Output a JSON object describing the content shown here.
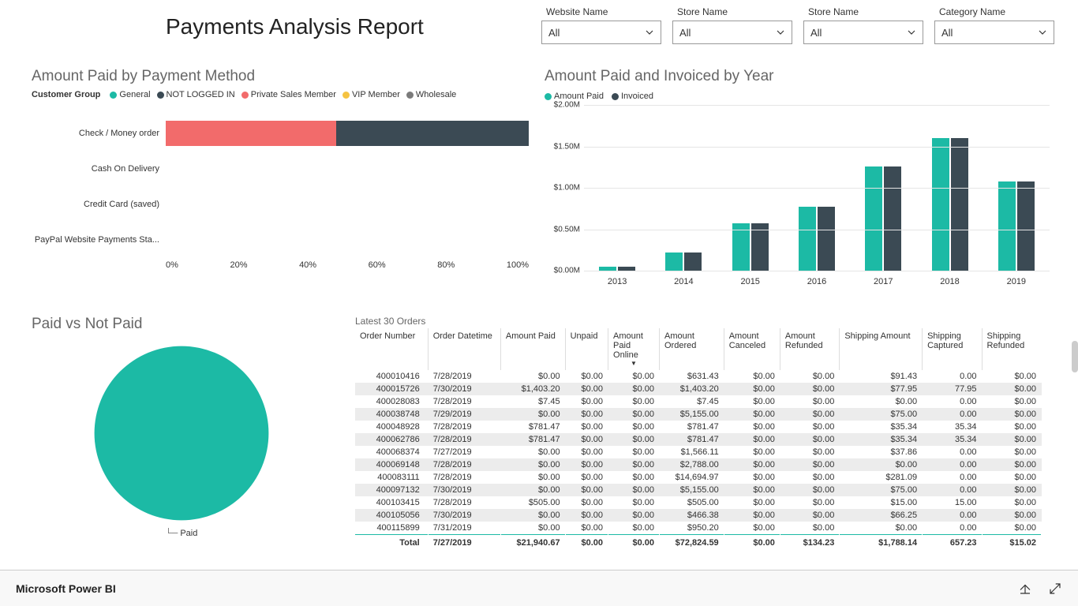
{
  "title": "Payments Analysis Report",
  "filters": [
    {
      "label": "Website Name",
      "value": "All"
    },
    {
      "label": "Store Name",
      "value": "All"
    },
    {
      "label": "Store Name",
      "value": "All"
    },
    {
      "label": "Category Name",
      "value": "All"
    }
  ],
  "stacked_bar": {
    "title": "Amount Paid by Payment Method",
    "type": "stacked-horizontal-bar",
    "legend_title": "Customer Group",
    "legend": [
      {
        "label": "General",
        "color": "#1cbaa5"
      },
      {
        "label": "NOT LOGGED IN",
        "color": "#3b4a54"
      },
      {
        "label": "Private Sales Member",
        "color": "#f26b6b"
      },
      {
        "label": "VIP Member",
        "color": "#f5c342"
      },
      {
        "label": "Wholesale",
        "color": "#7b7b7b"
      }
    ],
    "categories": [
      {
        "label": "Check / Money order",
        "segments": [
          {
            "color": "#f26b6b",
            "pct": 47
          },
          {
            "color": "#3b4a54",
            "pct": 53
          }
        ]
      },
      {
        "label": "Cash On Delivery",
        "segments": []
      },
      {
        "label": "Credit Card (saved)",
        "segments": []
      },
      {
        "label": "PayPal Website Payments Sta...",
        "segments": []
      }
    ],
    "x_ticks": [
      "0%",
      "20%",
      "40%",
      "60%",
      "80%",
      "100%"
    ]
  },
  "column_chart": {
    "title": "Amount Paid and Invoiced by Year",
    "type": "grouped-column",
    "series": [
      {
        "label": "Amount Paid",
        "color": "#1cbaa5"
      },
      {
        "label": "Invoiced",
        "color": "#3b4a54"
      }
    ],
    "y_ticks": [
      "$0.00M",
      "$0.50M",
      "$1.00M",
      "$1.50M",
      "$2.00M"
    ],
    "y_max": 2.0,
    "data": [
      {
        "x": "2013",
        "paid": 0.05,
        "invoiced": 0.05
      },
      {
        "x": "2014",
        "paid": 0.22,
        "invoiced": 0.22
      },
      {
        "x": "2015",
        "paid": 0.57,
        "invoiced": 0.57
      },
      {
        "x": "2016",
        "paid": 0.77,
        "invoiced": 0.77
      },
      {
        "x": "2017",
        "paid": 1.26,
        "invoiced": 1.26
      },
      {
        "x": "2018",
        "paid": 1.6,
        "invoiced": 1.6
      },
      {
        "x": "2019",
        "paid": 1.08,
        "invoiced": 1.08
      }
    ]
  },
  "pie": {
    "title": "Paid vs Not Paid",
    "type": "pie",
    "slices": [
      {
        "label": "Paid",
        "color": "#1cbaa5",
        "pct": 100
      }
    ],
    "legend_label": "Paid"
  },
  "table": {
    "title": "Latest 30 Orders",
    "columns": [
      "Order Number",
      "Order Datetime",
      "Amount Paid",
      "Unpaid",
      "Amount Paid Online",
      "Amount Ordered",
      "Amount Canceled",
      "Amount Refunded",
      "Shipping Amount",
      "Shipping Captured",
      "Shipping Refunded"
    ],
    "rows": [
      [
        "400010416",
        "7/28/2019",
        "$0.00",
        "$0.00",
        "$0.00",
        "$631.43",
        "$0.00",
        "$0.00",
        "$91.43",
        "0.00",
        "$0.00"
      ],
      [
        "400015726",
        "7/30/2019",
        "$1,403.20",
        "$0.00",
        "$0.00",
        "$1,403.20",
        "$0.00",
        "$0.00",
        "$77.95",
        "77.95",
        "$0.00"
      ],
      [
        "400028083",
        "7/28/2019",
        "$7.45",
        "$0.00",
        "$0.00",
        "$7.45",
        "$0.00",
        "$0.00",
        "$0.00",
        "0.00",
        "$0.00"
      ],
      [
        "400038748",
        "7/29/2019",
        "$0.00",
        "$0.00",
        "$0.00",
        "$5,155.00",
        "$0.00",
        "$0.00",
        "$75.00",
        "0.00",
        "$0.00"
      ],
      [
        "400048928",
        "7/28/2019",
        "$781.47",
        "$0.00",
        "$0.00",
        "$781.47",
        "$0.00",
        "$0.00",
        "$35.34",
        "35.34",
        "$0.00"
      ],
      [
        "400062786",
        "7/28/2019",
        "$781.47",
        "$0.00",
        "$0.00",
        "$781.47",
        "$0.00",
        "$0.00",
        "$35.34",
        "35.34",
        "$0.00"
      ],
      [
        "400068374",
        "7/27/2019",
        "$0.00",
        "$0.00",
        "$0.00",
        "$1,566.11",
        "$0.00",
        "$0.00",
        "$37.86",
        "0.00",
        "$0.00"
      ],
      [
        "400069148",
        "7/28/2019",
        "$0.00",
        "$0.00",
        "$0.00",
        "$2,788.00",
        "$0.00",
        "$0.00",
        "$0.00",
        "0.00",
        "$0.00"
      ],
      [
        "400083111",
        "7/28/2019",
        "$0.00",
        "$0.00",
        "$0.00",
        "$14,694.97",
        "$0.00",
        "$0.00",
        "$281.09",
        "0.00",
        "$0.00"
      ],
      [
        "400097132",
        "7/30/2019",
        "$0.00",
        "$0.00",
        "$0.00",
        "$5,155.00",
        "$0.00",
        "$0.00",
        "$75.00",
        "0.00",
        "$0.00"
      ],
      [
        "400103415",
        "7/28/2019",
        "$505.00",
        "$0.00",
        "$0.00",
        "$505.00",
        "$0.00",
        "$0.00",
        "$15.00",
        "15.00",
        "$0.00"
      ],
      [
        "400105056",
        "7/30/2019",
        "$0.00",
        "$0.00",
        "$0.00",
        "$466.38",
        "$0.00",
        "$0.00",
        "$66.25",
        "0.00",
        "$0.00"
      ],
      [
        "400115899",
        "7/31/2019",
        "$0.00",
        "$0.00",
        "$0.00",
        "$950.20",
        "$0.00",
        "$0.00",
        "$0.00",
        "0.00",
        "$0.00"
      ]
    ],
    "total": [
      "Total",
      "7/27/2019",
      "$21,940.67",
      "$0.00",
      "$0.00",
      "$72,824.59",
      "$0.00",
      "$134.23",
      "$1,788.14",
      "657.23",
      "$15.02"
    ]
  },
  "footer": {
    "brand": "Microsoft Power BI"
  },
  "colors": {
    "teal": "#1cbaa5",
    "dark": "#3b4a54",
    "coral": "#f26b6b",
    "grid": "#e5e5e5",
    "bg": "#ffffff"
  }
}
